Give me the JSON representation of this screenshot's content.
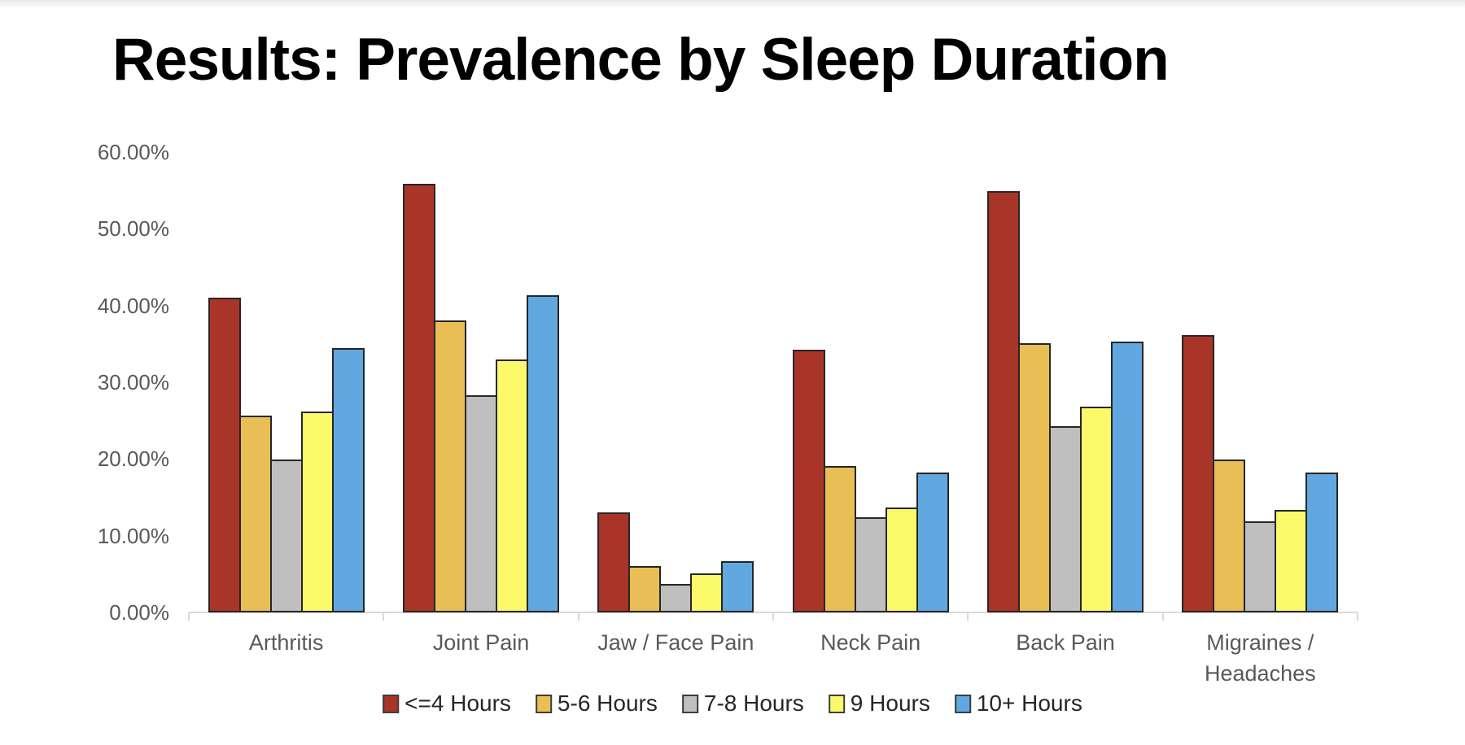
{
  "page": {
    "background": "#ffffff"
  },
  "title": "Results: Prevalence by Sleep Duration",
  "chart_data": {
    "type": "bar",
    "title": "Results: Prevalence by Sleep Duration",
    "categories": [
      "Arthritis",
      "Joint Pain",
      "Jaw / Face Pain",
      "Neck Pain",
      "Back Pain",
      "Migraines / Headaches"
    ],
    "series": [
      {
        "name": "<=4 Hours",
        "color": "#A93428",
        "values": [
          41.0,
          55.9,
          13.0,
          34.2,
          54.9,
          36.2
        ]
      },
      {
        "name": "5-6 Hours",
        "color": "#E9BE55",
        "values": [
          25.7,
          38.1,
          6.0,
          19.1,
          35.1,
          19.9
        ]
      },
      {
        "name": "7-8 Hours",
        "color": "#BFBFBF",
        "values": [
          19.9,
          28.3,
          3.7,
          12.4,
          24.3,
          11.9
        ]
      },
      {
        "name": "9 Hours",
        "color": "#FBF96A",
        "values": [
          26.2,
          33.0,
          5.1,
          13.7,
          26.8,
          13.4
        ]
      },
      {
        "name": "10+ Hours",
        "color": "#61A8E0",
        "values": [
          34.5,
          41.3,
          6.7,
          18.2,
          35.3,
          18.2
        ]
      }
    ],
    "ylim": [
      0,
      60
    ],
    "yticks": [
      {
        "value": 0,
        "label": "0.00%"
      },
      {
        "value": 10,
        "label": "10.00%"
      },
      {
        "value": 20,
        "label": "20.00%"
      },
      {
        "value": 30,
        "label": "30.00%"
      },
      {
        "value": 40,
        "label": "40.00%"
      },
      {
        "value": 50,
        "label": "50.00%"
      },
      {
        "value": 60,
        "label": "60.00%"
      }
    ],
    "grid": false,
    "legend_position": "bottom",
    "colors": {
      "axis_line": "#D9D9D9",
      "tick_label_text": "#595959",
      "category_label_text": "#595959",
      "legend_text": "#262626",
      "bar_border": "#262626",
      "title_text": "#000000"
    }
  }
}
